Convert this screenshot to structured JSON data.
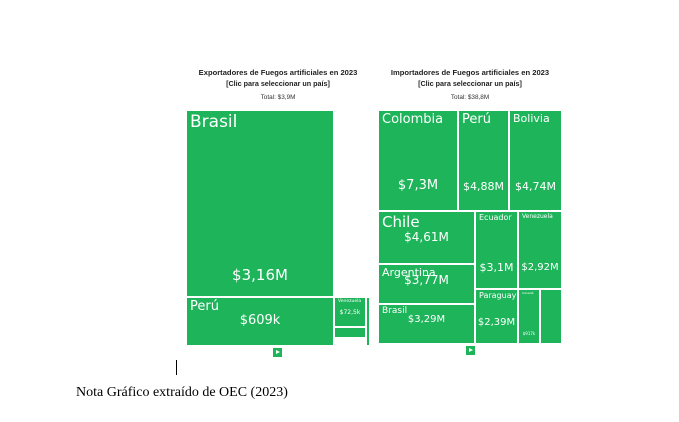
{
  "accent_color": "#1db45a",
  "charts": [
    {
      "title": "Exportadores de Fuegos artificiales en 2023",
      "subtitle": "[Clic para seleccionar un país]",
      "total": "Total: $3,9M"
    },
    {
      "title": "Importadores de Fuegos artificiales en 2023",
      "subtitle": "[Clic para seleccionar un país]",
      "total": "Total: $38,8M"
    }
  ],
  "chart_data": [
    {
      "type": "treemap",
      "title": "Exportadores de Fuegos artificiales en 2023",
      "subtitle": "[Clic para seleccionar un país]",
      "total": "Total: $3,9M",
      "items": [
        {
          "name": "Brasil",
          "value": 3.16,
          "value_label": "$3,16M"
        },
        {
          "name": "Perú",
          "value": 0.609,
          "value_label": "$609k"
        },
        {
          "name": "Venezuela",
          "value": 0.0725,
          "value_label": "$72,5k"
        },
        {
          "name": "",
          "value": 0.01,
          "value_label": ""
        },
        {
          "name": "",
          "value": 0.005,
          "value_label": ""
        }
      ]
    },
    {
      "type": "treemap",
      "title": "Importadores de Fuegos artificiales en 2023",
      "subtitle": "[Clic para seleccionar un país]",
      "total": "Total: $38,8M",
      "items": [
        {
          "name": "Colombia",
          "value": 7.3,
          "value_label": "$7,3M"
        },
        {
          "name": "Perú",
          "value": 4.88,
          "value_label": "$4,88M"
        },
        {
          "name": "Bolivia",
          "value": 4.74,
          "value_label": "$4,74M"
        },
        {
          "name": "Chile",
          "value": 4.61,
          "value_label": "$4,61M"
        },
        {
          "name": "Argentina",
          "value": 3.77,
          "value_label": "$3,77M"
        },
        {
          "name": "Brasil",
          "value": 3.29,
          "value_label": "$3,29M"
        },
        {
          "name": "Ecuador",
          "value": 3.1,
          "value_label": "$3,1M"
        },
        {
          "name": "Venezuela",
          "value": 2.92,
          "value_label": "$2,92M"
        },
        {
          "name": "Paraguay",
          "value": 2.39,
          "value_label": "$2,39M"
        },
        {
          "name": "Canadá",
          "value": 0.917,
          "value_label": "$917k"
        },
        {
          "name": "",
          "value": 0.8,
          "value_label": ""
        }
      ]
    }
  ],
  "caption": "Nota Gráfico extraído de OEC (2023)"
}
